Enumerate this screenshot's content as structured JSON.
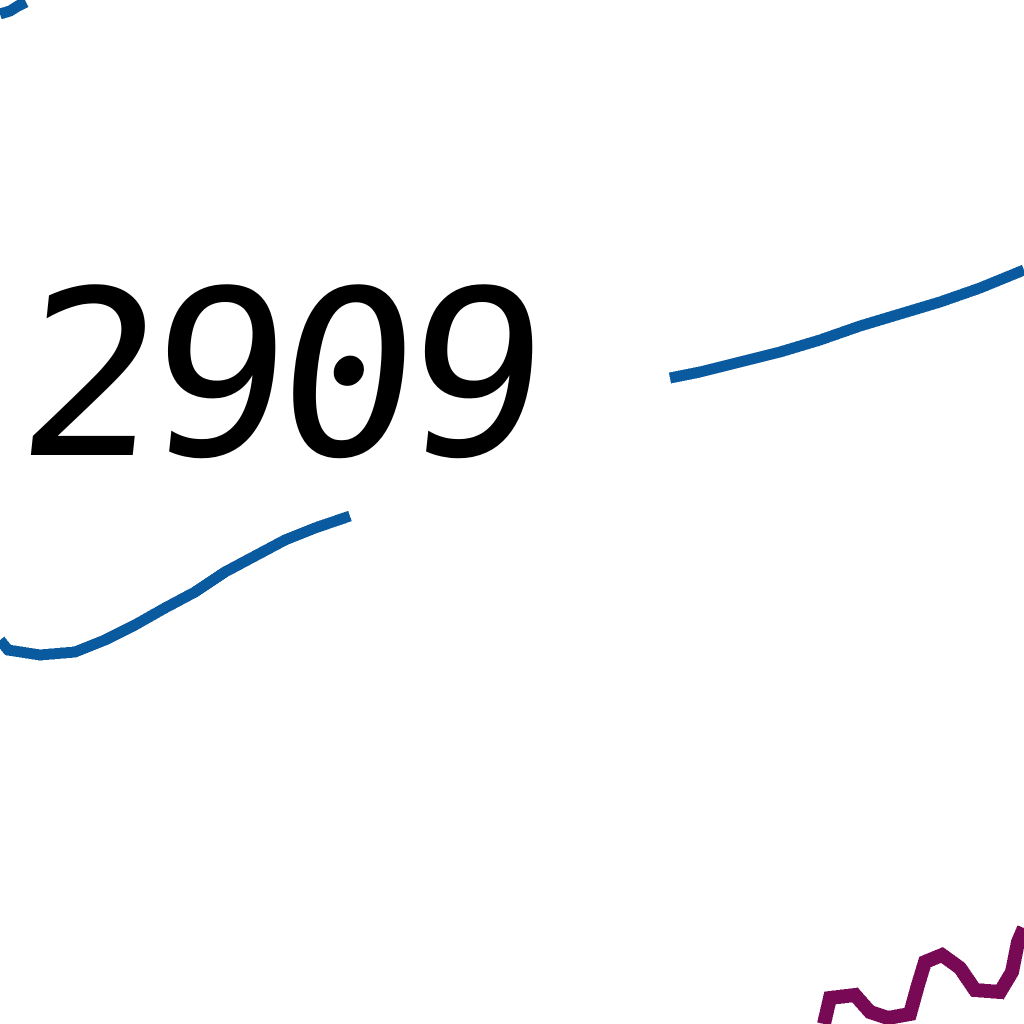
{
  "map": {
    "contour_label": "2909",
    "colors": {
      "background": "#ffffff",
      "contour_line": "#0a5aa0",
      "road_line": "#780a55",
      "label_text": "#000000"
    }
  }
}
